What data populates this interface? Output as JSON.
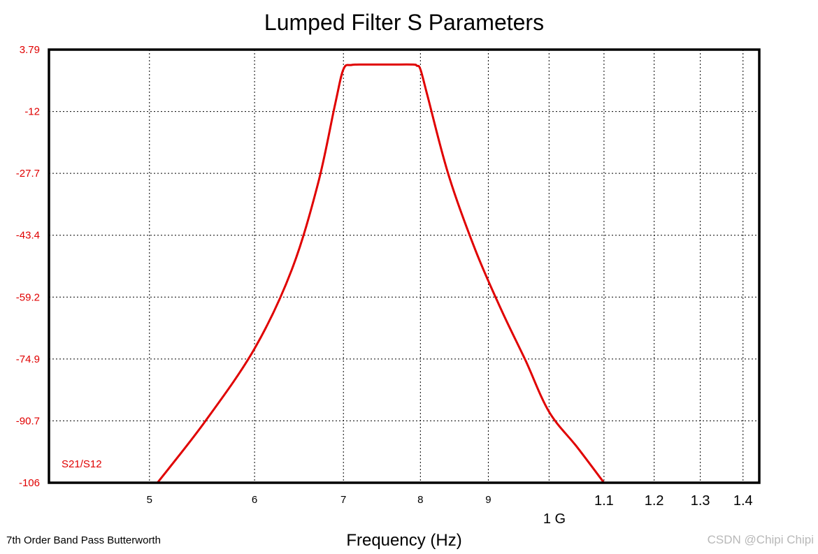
{
  "chart_data": {
    "type": "line",
    "title": "Lumped Filter S Parameters",
    "subtitle": "7th Order Band Pass Butterworth",
    "xlabel": "Frequency (Hz)",
    "x_scale": "log",
    "x_unit_label": "1 G",
    "xlim": [
      420000000,
      1440000000
    ],
    "ylim": [
      -106,
      3.79
    ],
    "y_ticks": [
      "3.79",
      "-12",
      "-27.7",
      "-43.4",
      "-59.2",
      "-74.9",
      "-90.7",
      "-106"
    ],
    "x_ticks": [
      {
        "value": 500000000,
        "label": "5"
      },
      {
        "value": 600000000,
        "label": "6"
      },
      {
        "value": 700000000,
        "label": "7"
      },
      {
        "value": 800000000,
        "label": "8"
      },
      {
        "value": 900000000,
        "label": "9"
      },
      {
        "value": 1100000000,
        "label": "1.1"
      },
      {
        "value": 1200000000,
        "label": "1.2"
      },
      {
        "value": 1300000000,
        "label": "1.3"
      },
      {
        "value": 1400000000,
        "label": "1.4"
      }
    ],
    "grid": true,
    "series": [
      {
        "name": "S21/S12",
        "color": "#e00000",
        "x": [
          507000000,
          550000000,
          600000000,
          640000000,
          670000000,
          690000000,
          700000000,
          710000000,
          730000000,
          760000000,
          790000000,
          795000000,
          800000000,
          810000000,
          840000000,
          880000000,
          920000000,
          960000000,
          1000000000,
          1050000000,
          1100000000
        ],
        "y": [
          -106,
          -90.7,
          -72,
          -52,
          -30,
          -10,
          -1.2,
          -0.1,
          0,
          0,
          0,
          -0.3,
          -1.2,
          -8,
          -28,
          -47,
          -62,
          -75,
          -88,
          -97,
          -106
        ]
      }
    ]
  },
  "footer": {
    "watermark": "CSDN @Chipi Chipi"
  }
}
